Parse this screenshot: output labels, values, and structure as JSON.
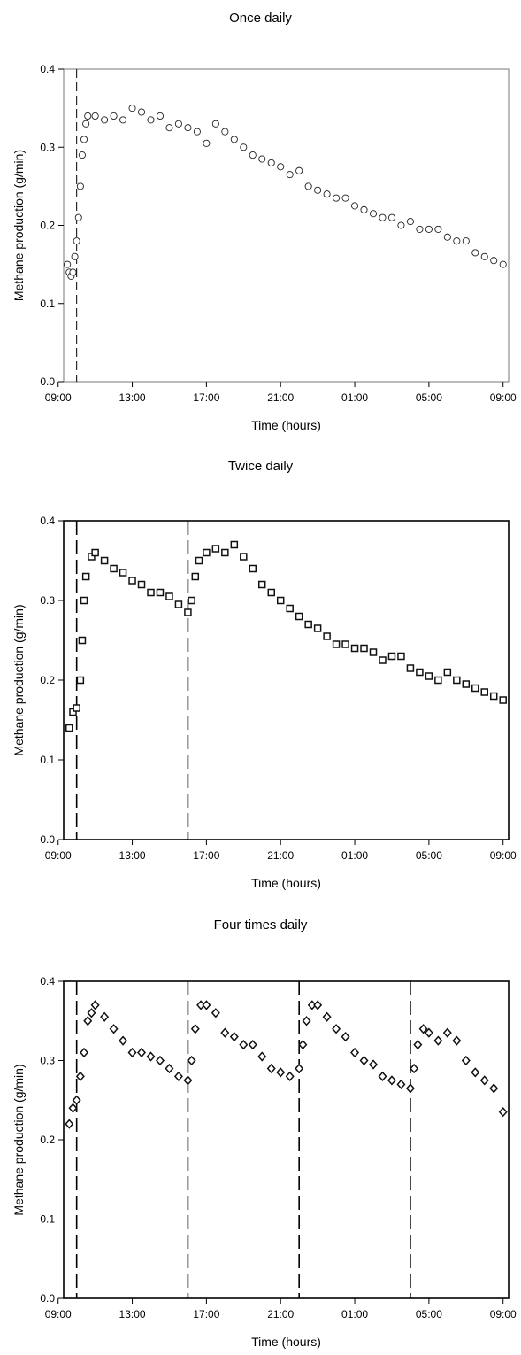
{
  "chart_data": [
    {
      "type": "scatter",
      "title": "Once daily",
      "xlabel": "Time (hours)",
      "ylabel": "Methane production (g/min)",
      "xlim": [
        9.3,
        33.3
      ],
      "ylim": [
        0,
        0.4
      ],
      "x_ticks": [
        {
          "value": 9,
          "label": "09:00"
        },
        {
          "value": 13,
          "label": "13:00"
        },
        {
          "value": 17,
          "label": "17:00"
        },
        {
          "value": 21,
          "label": "21:00"
        },
        {
          "value": 25,
          "label": "01:00"
        },
        {
          "value": 29,
          "label": "05:00"
        },
        {
          "value": 33,
          "label": "09:00"
        }
      ],
      "y_ticks": [
        "0.0",
        "0.1",
        "0.2",
        "0.3",
        "0.4"
      ],
      "feeding_times": [
        10
      ],
      "marker": "circle",
      "series": [
        {
          "points": [
            [
              9.5,
              0.15
            ],
            [
              9.6,
              0.14
            ],
            [
              9.7,
              0.135
            ],
            [
              9.8,
              0.14
            ],
            [
              9.9,
              0.16
            ],
            [
              10,
              0.18
            ],
            [
              10.1,
              0.21
            ],
            [
              10.2,
              0.25
            ],
            [
              10.3,
              0.29
            ],
            [
              10.4,
              0.31
            ],
            [
              10.5,
              0.33
            ],
            [
              10.6,
              0.34
            ],
            [
              11,
              0.34
            ],
            [
              11.5,
              0.335
            ],
            [
              12,
              0.34
            ],
            [
              12.5,
              0.335
            ],
            [
              13,
              0.35
            ],
            [
              13.5,
              0.345
            ],
            [
              14,
              0.335
            ],
            [
              14.5,
              0.34
            ],
            [
              15,
              0.325
            ],
            [
              15.5,
              0.33
            ],
            [
              16,
              0.325
            ],
            [
              16.5,
              0.32
            ],
            [
              17,
              0.305
            ],
            [
              17.5,
              0.33
            ],
            [
              18,
              0.32
            ],
            [
              18.5,
              0.31
            ],
            [
              19,
              0.3
            ],
            [
              19.5,
              0.29
            ],
            [
              20,
              0.285
            ],
            [
              20.5,
              0.28
            ],
            [
              21,
              0.275
            ],
            [
              21.5,
              0.265
            ],
            [
              22,
              0.27
            ],
            [
              22.5,
              0.25
            ],
            [
              23,
              0.245
            ],
            [
              23.5,
              0.24
            ],
            [
              24,
              0.235
            ],
            [
              24.5,
              0.235
            ],
            [
              25,
              0.225
            ],
            [
              25.5,
              0.22
            ],
            [
              26,
              0.215
            ],
            [
              26.5,
              0.21
            ],
            [
              27,
              0.21
            ],
            [
              27.5,
              0.2
            ],
            [
              28,
              0.205
            ],
            [
              28.5,
              0.195
            ],
            [
              29,
              0.195
            ],
            [
              29.5,
              0.195
            ],
            [
              30,
              0.185
            ],
            [
              30.5,
              0.18
            ],
            [
              31,
              0.18
            ],
            [
              31.5,
              0.165
            ],
            [
              32,
              0.16
            ],
            [
              32.5,
              0.155
            ],
            [
              33,
              0.15
            ]
          ]
        }
      ]
    },
    {
      "type": "scatter",
      "title": "Twice daily",
      "xlabel": "Time (hours)",
      "ylabel": "Methane production (g/min)",
      "xlim": [
        9.3,
        33.3
      ],
      "ylim": [
        0,
        0.4
      ],
      "x_ticks": [
        {
          "value": 9,
          "label": "09:00"
        },
        {
          "value": 13,
          "label": "13:00"
        },
        {
          "value": 17,
          "label": "17:00"
        },
        {
          "value": 21,
          "label": "21:00"
        },
        {
          "value": 25,
          "label": "01:00"
        },
        {
          "value": 29,
          "label": "05:00"
        },
        {
          "value": 33,
          "label": "09:00"
        }
      ],
      "y_ticks": [
        "0.0",
        "0.1",
        "0.2",
        "0.3",
        "0.4"
      ],
      "feeding_times": [
        10,
        16
      ],
      "marker": "square",
      "series": [
        {
          "points": [
            [
              9.6,
              0.14
            ],
            [
              9.8,
              0.16
            ],
            [
              10,
              0.165
            ],
            [
              10.2,
              0.2
            ],
            [
              10.3,
              0.25
            ],
            [
              10.4,
              0.3
            ],
            [
              10.5,
              0.33
            ],
            [
              10.8,
              0.355
            ],
            [
              11,
              0.36
            ],
            [
              11.5,
              0.35
            ],
            [
              12,
              0.34
            ],
            [
              12.5,
              0.335
            ],
            [
              13,
              0.325
            ],
            [
              13.5,
              0.32
            ],
            [
              14,
              0.31
            ],
            [
              14.5,
              0.31
            ],
            [
              15,
              0.305
            ],
            [
              15.5,
              0.295
            ],
            [
              16,
              0.285
            ],
            [
              16.2,
              0.3
            ],
            [
              16.4,
              0.33
            ],
            [
              16.6,
              0.35
            ],
            [
              17,
              0.36
            ],
            [
              17.5,
              0.365
            ],
            [
              18,
              0.36
            ],
            [
              18.5,
              0.37
            ],
            [
              19,
              0.355
            ],
            [
              19.5,
              0.34
            ],
            [
              20,
              0.32
            ],
            [
              20.5,
              0.31
            ],
            [
              21,
              0.3
            ],
            [
              21.5,
              0.29
            ],
            [
              22,
              0.28
            ],
            [
              22.5,
              0.27
            ],
            [
              23,
              0.265
            ],
            [
              23.5,
              0.255
            ],
            [
              24,
              0.245
            ],
            [
              24.5,
              0.245
            ],
            [
              25,
              0.24
            ],
            [
              25.5,
              0.24
            ],
            [
              26,
              0.235
            ],
            [
              26.5,
              0.225
            ],
            [
              27,
              0.23
            ],
            [
              27.5,
              0.23
            ],
            [
              28,
              0.215
            ],
            [
              28.5,
              0.21
            ],
            [
              29,
              0.205
            ],
            [
              29.5,
              0.2
            ],
            [
              30,
              0.21
            ],
            [
              30.5,
              0.2
            ],
            [
              31,
              0.195
            ],
            [
              31.5,
              0.19
            ],
            [
              32,
              0.185
            ],
            [
              32.5,
              0.18
            ],
            [
              33,
              0.175
            ]
          ]
        }
      ]
    },
    {
      "type": "scatter",
      "title": "Four times daily",
      "xlabel": "Time (hours)",
      "ylabel": "Methane production (g/min)",
      "xlim": [
        9.3,
        33.3
      ],
      "ylim": [
        0,
        0.4
      ],
      "x_ticks": [
        {
          "value": 9,
          "label": "09:00"
        },
        {
          "value": 13,
          "label": "13:00"
        },
        {
          "value": 17,
          "label": "17:00"
        },
        {
          "value": 21,
          "label": "21:00"
        },
        {
          "value": 25,
          "label": "01:00"
        },
        {
          "value": 29,
          "label": "05:00"
        },
        {
          "value": 33,
          "label": "09:00"
        }
      ],
      "y_ticks": [
        "0.0",
        "0.1",
        "0.2",
        "0.3",
        "0.4"
      ],
      "feeding_times": [
        10,
        16,
        22,
        28
      ],
      "marker": "diamond",
      "series": [
        {
          "points": [
            [
              9.6,
              0.22
            ],
            [
              9.8,
              0.24
            ],
            [
              10,
              0.25
            ],
            [
              10.2,
              0.28
            ],
            [
              10.4,
              0.31
            ],
            [
              10.6,
              0.35
            ],
            [
              10.8,
              0.36
            ],
            [
              11,
              0.37
            ],
            [
              11.5,
              0.355
            ],
            [
              12,
              0.34
            ],
            [
              12.5,
              0.325
            ],
            [
              13,
              0.31
            ],
            [
              13.5,
              0.31
            ],
            [
              14,
              0.305
            ],
            [
              14.5,
              0.3
            ],
            [
              15,
              0.29
            ],
            [
              15.5,
              0.28
            ],
            [
              16,
              0.275
            ],
            [
              16.2,
              0.3
            ],
            [
              16.4,
              0.34
            ],
            [
              16.7,
              0.37
            ],
            [
              17,
              0.37
            ],
            [
              17.5,
              0.36
            ],
            [
              18,
              0.335
            ],
            [
              18.5,
              0.33
            ],
            [
              19,
              0.32
            ],
            [
              19.5,
              0.32
            ],
            [
              20,
              0.305
            ],
            [
              20.5,
              0.29
            ],
            [
              21,
              0.285
            ],
            [
              21.5,
              0.28
            ],
            [
              22,
              0.29
            ],
            [
              22.2,
              0.32
            ],
            [
              22.4,
              0.35
            ],
            [
              22.7,
              0.37
            ],
            [
              23,
              0.37
            ],
            [
              23.5,
              0.355
            ],
            [
              24,
              0.34
            ],
            [
              24.5,
              0.33
            ],
            [
              25,
              0.31
            ],
            [
              25.5,
              0.3
            ],
            [
              26,
              0.295
            ],
            [
              26.5,
              0.28
            ],
            [
              27,
              0.275
            ],
            [
              27.5,
              0.27
            ],
            [
              28,
              0.265
            ],
            [
              28.2,
              0.29
            ],
            [
              28.4,
              0.32
            ],
            [
              28.7,
              0.34
            ],
            [
              29,
              0.335
            ],
            [
              29.5,
              0.325
            ],
            [
              30,
              0.335
            ],
            [
              30.5,
              0.325
            ],
            [
              31,
              0.3
            ],
            [
              31.5,
              0.285
            ],
            [
              32,
              0.275
            ],
            [
              32.5,
              0.265
            ],
            [
              33,
              0.235
            ]
          ]
        }
      ]
    }
  ]
}
